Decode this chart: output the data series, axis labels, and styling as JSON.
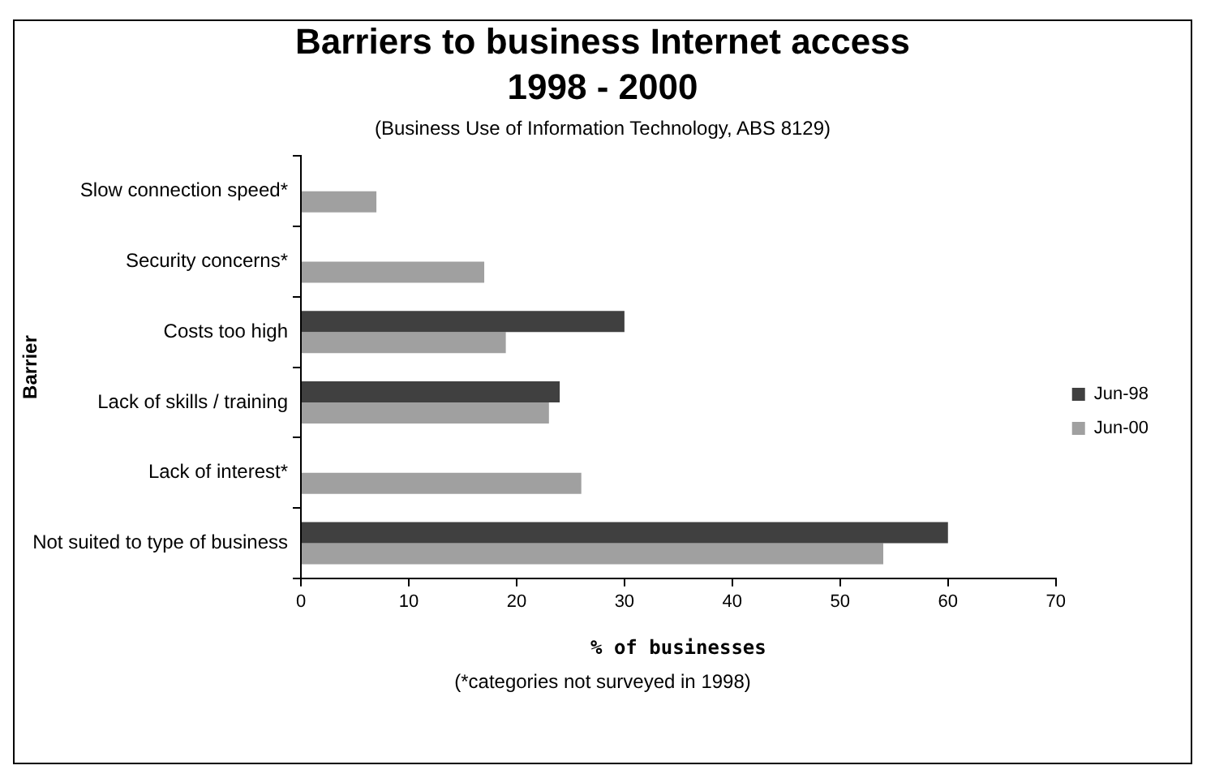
{
  "chart_data": {
    "type": "bar",
    "orientation": "horizontal",
    "title": "Barriers to business Internet access 1998 - 2000",
    "subtitle": "(Business Use of Information Technology, ABS 8129)",
    "xlabel": "% of businesses",
    "ylabel": "Barrier",
    "categories": [
      "Slow connection speed*",
      "Security concerns*",
      "Costs too high",
      "Lack of skills / training",
      "Lack of interest*",
      "Not suited to type of business"
    ],
    "series": [
      {
        "name": "Jun-98",
        "color": "#404040",
        "values": [
          null,
          null,
          30,
          24,
          null,
          60
        ]
      },
      {
        "name": "Jun-00",
        "color": "#a0a0a0",
        "values": [
          7,
          17,
          19,
          23,
          26,
          54
        ]
      }
    ],
    "xlim": [
      0,
      70
    ],
    "xticks": [
      0,
      10,
      20,
      30,
      40,
      50,
      60,
      70
    ],
    "grid": false,
    "legend": "right",
    "annotations": [
      "(*categories not surveyed in 1998)"
    ]
  }
}
